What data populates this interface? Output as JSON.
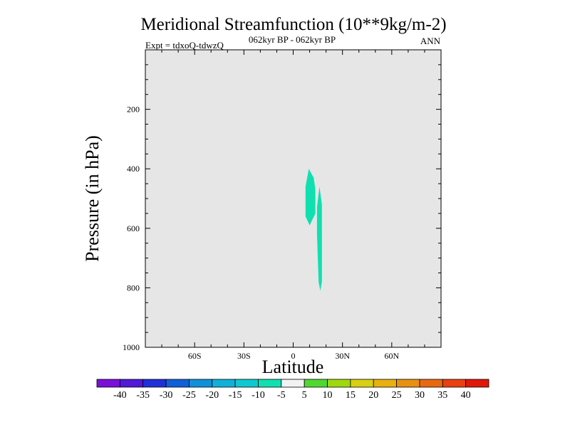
{
  "chart_data": {
    "type": "contour",
    "title": "Meridional Streamfunction (10**9kg/m-2)",
    "subtitle_left": "Expt = tdxoQ-tdwzQ",
    "subtitle_center": "062kyr BP - 062kyr BP",
    "subtitle_right": "ANN",
    "xlabel": "Latitude",
    "ylabel": "Pressure (in hPa)",
    "xlim": [
      -90,
      90
    ],
    "ylim": [
      1000,
      0
    ],
    "x_ticks": [
      {
        "value": -60,
        "label": "60S"
      },
      {
        "value": -30,
        "label": "30S"
      },
      {
        "value": 0,
        "label": "0"
      },
      {
        "value": 30,
        "label": "30N"
      },
      {
        "value": 60,
        "label": "60N"
      }
    ],
    "y_ticks": [
      {
        "value": 200,
        "label": "200"
      },
      {
        "value": 400,
        "label": "400"
      },
      {
        "value": 600,
        "label": "600"
      },
      {
        "value": 800,
        "label": "800"
      },
      {
        "value": 1000,
        "label": "1000"
      }
    ],
    "background_color": "#e6e6e6",
    "regions": [
      {
        "level": "-10 to -5",
        "color": "#10e0b0",
        "points": [
          [
            7.5,
            560
          ],
          [
            7.5,
            460
          ],
          [
            9.5,
            400
          ],
          [
            12.5,
            430
          ],
          [
            13.5,
            470
          ],
          [
            13.5,
            550
          ],
          [
            10,
            590
          ],
          [
            7.5,
            560
          ]
        ]
      },
      {
        "level": "-10 to -5",
        "color": "#10e0b0",
        "points": [
          [
            14.5,
            530
          ],
          [
            16,
            460
          ],
          [
            17.5,
            520
          ],
          [
            17.5,
            780
          ],
          [
            16.5,
            810
          ],
          [
            15.5,
            780
          ],
          [
            14.5,
            620
          ],
          [
            14.5,
            530
          ]
        ]
      }
    ],
    "colorbar": {
      "labels": [
        "-40",
        "-35",
        "-30",
        "-25",
        "-20",
        "-15",
        "-10",
        "-5",
        "5",
        "10",
        "15",
        "20",
        "25",
        "30",
        "35",
        "40"
      ],
      "colors": [
        "#7a10d8",
        "#5018d8",
        "#2030d8",
        "#1060d8",
        "#1090d8",
        "#10b0d8",
        "#10c8d0",
        "#10e0b0",
        "#f2f2f2",
        "#50d830",
        "#a0d810",
        "#d8d010",
        "#e8b010",
        "#e89010",
        "#e86810",
        "#e84010",
        "#e01808"
      ]
    }
  }
}
